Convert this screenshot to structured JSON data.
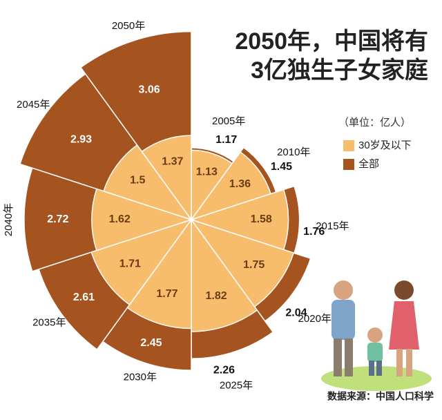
{
  "chart_data": {
    "type": "rose",
    "title": "2050年，中国将有",
    "subtitle": "3亿独生子女家庭",
    "unit_note": "（单位：亿人）",
    "source": "数据来源：中国人口科学",
    "categories": [
      "2005年",
      "2010年",
      "2015年",
      "2020年",
      "2025年",
      "2030年",
      "2035年",
      "2040年",
      "2045年",
      "2050年"
    ],
    "series": [
      {
        "name": "全部",
        "color": "#a5531f",
        "values": [
          1.17,
          1.45,
          1.76,
          2.04,
          2.26,
          2.45,
          2.61,
          2.72,
          2.93,
          3.06
        ]
      },
      {
        "name": "30岁及以下",
        "color": "#f7bd6c",
        "values": [
          1.13,
          1.36,
          1.58,
          1.75,
          1.82,
          1.77,
          1.71,
          1.62,
          1.5,
          1.37
        ]
      }
    ]
  }
}
